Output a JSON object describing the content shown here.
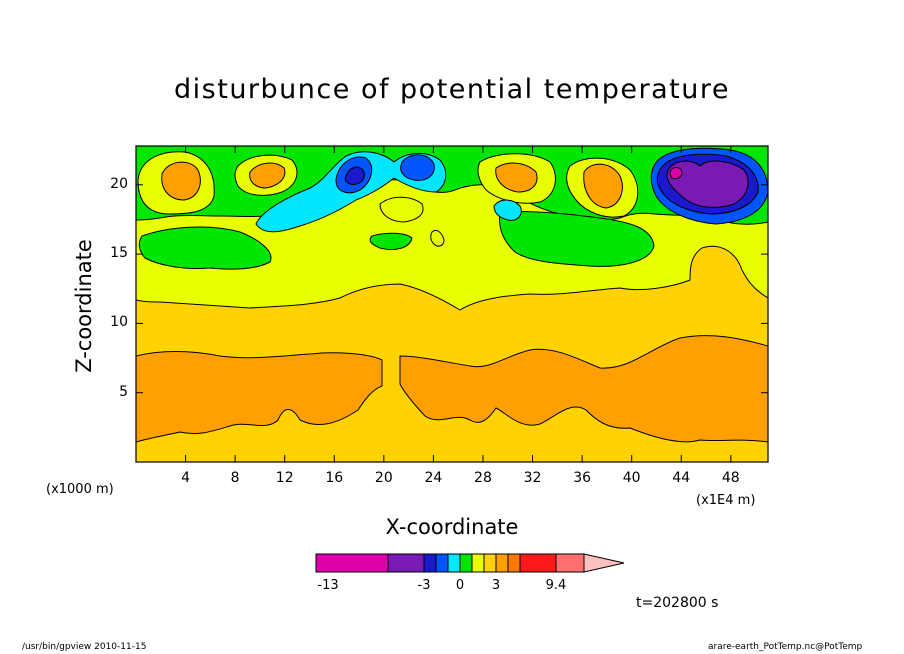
{
  "chart_data": {
    "type": "heatmap",
    "title": "disturbunce of potential temperature",
    "xlabel": "X-coordinate",
    "ylabel": "Z-coordinate",
    "x_unit_left": "(x1000 m)",
    "x_unit_right": "(x1E4 m)",
    "x_ticks": [
      4,
      8,
      12,
      16,
      20,
      24,
      28,
      32,
      36,
      40,
      44,
      48
    ],
    "y_ticks": [
      5,
      10,
      15,
      20
    ],
    "xlim": [
      0,
      51
    ],
    "ylim": [
      0,
      22.8
    ],
    "colorbar": {
      "labels": [
        {
          "text": "-13",
          "value": -13
        },
        {
          "text": "-3",
          "value": -3
        },
        {
          "text": "0",
          "value": 0
        },
        {
          "text": "3",
          "value": 3
        },
        {
          "text": "9.4",
          "value": 9.4
        }
      ],
      "colors": [
        "#dd00aa",
        "#7a1ab4",
        "#1a1acc",
        "#0055ff",
        "#00e6ff",
        "#00e600",
        "#e8ff00",
        "#ffd200",
        "#ffa000",
        "#ff7a00",
        "#ff1a1a",
        "#ff7070",
        "#ffc0c0"
      ]
    },
    "time_label": "t=202800 s"
  },
  "footer": {
    "left": "/usr/bin/gpview   2010-11-15",
    "right": "arare-earth_PotTemp.nc@PotTemp"
  }
}
